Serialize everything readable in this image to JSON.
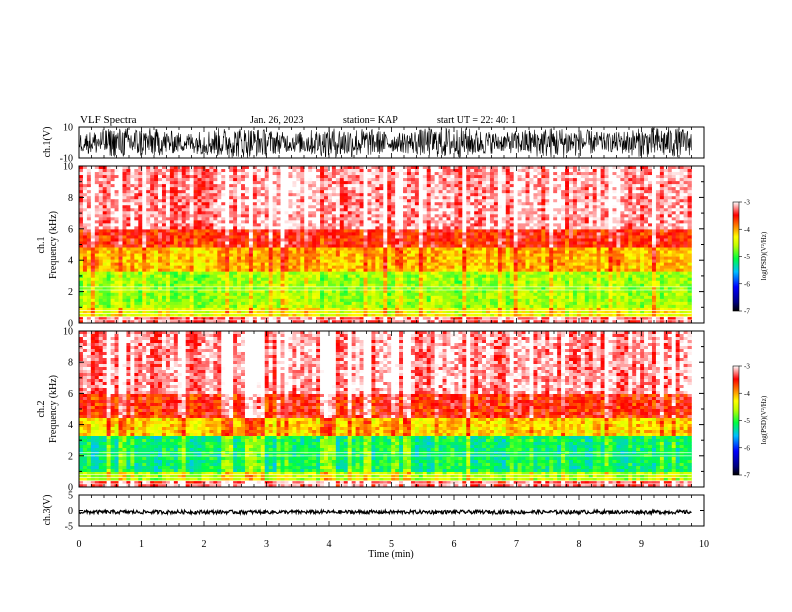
{
  "header": {
    "title": "VLF Spectra",
    "date": "Jan. 26, 2023",
    "station": "station= KAP",
    "start": "start  UT  =   22: 40: 1"
  },
  "chart_data": [
    {
      "type": "line",
      "name": "ch1-waveform",
      "ylabel": "ch.1(V)",
      "ylim": [
        -10,
        10
      ],
      "yticks": [
        "10",
        "-10"
      ],
      "xlim": [
        0,
        10
      ],
      "data_end_min": 9.8,
      "amplitude_note": "dense noise filling most of range"
    },
    {
      "type": "heatmap",
      "name": "ch1-spectrogram",
      "ylabel": "ch.1\nFrequency (kHz)",
      "ylim": [
        0,
        10
      ],
      "yticks": [
        "0",
        "2",
        "4",
        "6",
        "8",
        "10"
      ],
      "xlim": [
        0,
        10
      ],
      "data_end_min": 9.8,
      "colorbar": {
        "label": "log(PSD)(V²/Hz)",
        "range": [
          -7,
          -3
        ],
        "ticks": [
          "-3",
          "-4",
          "-5",
          "-6",
          "-7"
        ]
      },
      "bands": [
        {
          "f0": 0.0,
          "f1": 0.3,
          "level": -3.3
        },
        {
          "f0": 0.3,
          "f1": 1.0,
          "level": -4.4
        },
        {
          "f0": 1.0,
          "f1": 3.3,
          "level": -4.7
        },
        {
          "f0": 3.3,
          "f1": 4.8,
          "level": -4.1
        },
        {
          "f0": 4.8,
          "f1": 6.0,
          "level": -3.6
        },
        {
          "f0": 6.0,
          "f1": 10.0,
          "level": -3.2
        }
      ],
      "lines_khz": [
        0.2,
        0.4,
        0.6,
        0.8,
        2.1,
        2.3
      ]
    },
    {
      "type": "heatmap",
      "name": "ch2-spectrogram",
      "ylabel": "ch.2\nFrequency (kHz)",
      "ylim": [
        0,
        10
      ],
      "yticks": [
        "0",
        "2",
        "4",
        "6",
        "8",
        "10"
      ],
      "xlim": [
        0,
        10
      ],
      "data_end_min": 9.8,
      "colorbar": {
        "label": "log(PSD)(V²/Hz)",
        "range": [
          -7,
          -3
        ],
        "ticks": [
          "-3",
          "-4",
          "-5",
          "-6",
          "-7"
        ]
      },
      "bands": [
        {
          "f0": 0.0,
          "f1": 0.3,
          "level": -3.3
        },
        {
          "f0": 0.3,
          "f1": 1.0,
          "level": -4.6
        },
        {
          "f0": 1.0,
          "f1": 3.2,
          "level": -5.2
        },
        {
          "f0": 3.2,
          "f1": 4.5,
          "level": -4.2
        },
        {
          "f0": 4.5,
          "f1": 6.0,
          "level": -3.6
        },
        {
          "f0": 6.0,
          "f1": 10.0,
          "level": -3.2
        }
      ],
      "lines_khz": [
        0.2,
        0.4,
        0.6,
        0.8,
        2.0,
        2.2
      ]
    },
    {
      "type": "line",
      "name": "ch3-waveform",
      "ylabel": "ch.3(V)",
      "ylim": [
        -5,
        5
      ],
      "yticks": [
        "5",
        "0",
        "-5"
      ],
      "xlim": [
        0,
        10
      ],
      "xlabel": "Time  (min)",
      "xticks": [
        "0",
        "1",
        "2",
        "3",
        "4",
        "5",
        "6",
        "7",
        "8",
        "9",
        "10"
      ],
      "data_end_min": 9.8,
      "center": -0.5,
      "amplitude": 0.6
    }
  ]
}
